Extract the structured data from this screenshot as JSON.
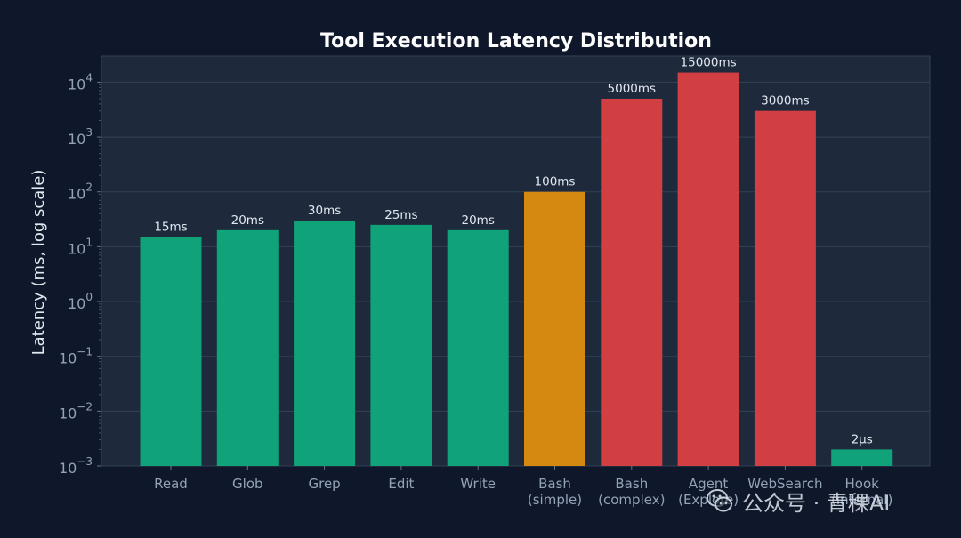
{
  "chart_data": {
    "type": "bar",
    "title": "Tool Execution Latency Distribution",
    "ylabel": "Latency (ms, log scale)",
    "yscale": "log",
    "ylim": [
      0.001,
      30000
    ],
    "yticks": [
      {
        "value": 0.001,
        "base": "10",
        "exp": "−3"
      },
      {
        "value": 0.01,
        "base": "10",
        "exp": "−2"
      },
      {
        "value": 0.1,
        "base": "10",
        "exp": "−1"
      },
      {
        "value": 1,
        "base": "10",
        "exp": "0"
      },
      {
        "value": 10,
        "base": "10",
        "exp": "1"
      },
      {
        "value": 100,
        "base": "10",
        "exp": "2"
      },
      {
        "value": 1000,
        "base": "10",
        "exp": "3"
      },
      {
        "value": 10000,
        "base": "10",
        "exp": "4"
      }
    ],
    "grid": true,
    "bars": [
      {
        "category": [
          "Read"
        ],
        "value": 15,
        "label": "15ms",
        "color": "#10a37a"
      },
      {
        "category": [
          "Glob"
        ],
        "value": 20,
        "label": "20ms",
        "color": "#10a37a"
      },
      {
        "category": [
          "Grep"
        ],
        "value": 30,
        "label": "30ms",
        "color": "#10a37a"
      },
      {
        "category": [
          "Edit"
        ],
        "value": 25,
        "label": "25ms",
        "color": "#10a37a"
      },
      {
        "category": [
          "Write"
        ],
        "value": 20,
        "label": "20ms",
        "color": "#10a37a"
      },
      {
        "category": [
          "Bash",
          "(simple)"
        ],
        "value": 100,
        "label": "100ms",
        "color": "#d68910"
      },
      {
        "category": [
          "Bash",
          "(complex)"
        ],
        "value": 5000,
        "label": "5000ms",
        "color": "#d13f43"
      },
      {
        "category": [
          "Agent",
          "(Explore)"
        ],
        "value": 15000,
        "label": "15000ms",
        "color": "#d13f43"
      },
      {
        "category": [
          "WebSearch"
        ],
        "value": 3000,
        "label": "3000ms",
        "color": "#d13f43"
      },
      {
        "category": [
          "Hook",
          "(internal)"
        ],
        "value": 0.002,
        "label": "2μs",
        "color": "#10a37a"
      }
    ]
  },
  "watermark": {
    "text": "公众号 · 青稞AI",
    "icon": "wechat-icon"
  },
  "colors": {
    "background": "#0f172a",
    "plot_background": "#1e293b",
    "grid": "#334155"
  }
}
